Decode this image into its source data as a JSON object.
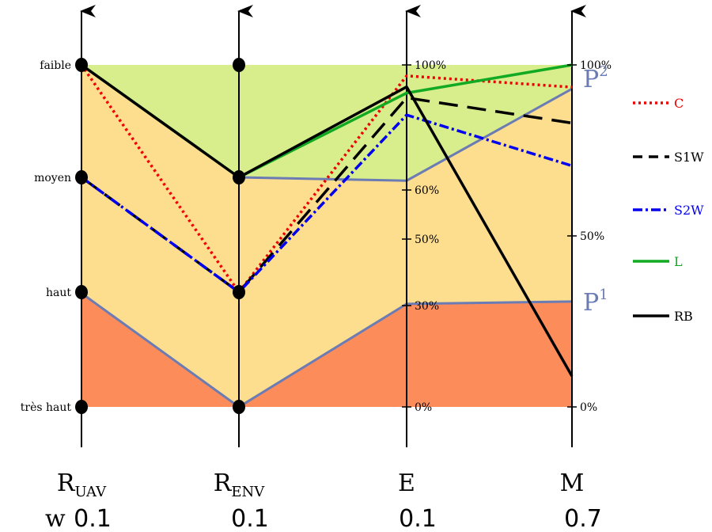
{
  "chart_data": {
    "type": "parallel_coordinates",
    "axes": [
      {
        "id": "R_UAV",
        "label_main": "R",
        "label_sub": "UAV",
        "weight": "0.1",
        "kind": "ordinal"
      },
      {
        "id": "R_ENV",
        "label_main": "R",
        "label_sub": "ENV",
        "weight": "0.1",
        "kind": "ordinal"
      },
      {
        "id": "E",
        "label_main": "E",
        "label_sub": "",
        "weight": "0.1",
        "kind": "percent"
      },
      {
        "id": "M",
        "label_main": "M",
        "label_sub": "",
        "weight": "0.7",
        "kind": "percent"
      }
    ],
    "weight_prefix": "w",
    "ordinal_levels": [
      "très haut",
      "haut",
      "moyen",
      "faible"
    ],
    "e_ticks": [
      {
        "label": "0%",
        "value": 0
      },
      {
        "label": "30%",
        "value": 30
      },
      {
        "label": "50%",
        "value": 50
      },
      {
        "label": "60%",
        "value": 60
      },
      {
        "label": "100%",
        "value": 100
      }
    ],
    "m_ticks": [
      {
        "label": "0%",
        "value": 0
      },
      {
        "label": "50%",
        "value": 50
      },
      {
        "label": "100%",
        "value": 100
      }
    ],
    "profiles": [
      {
        "name_main": "P",
        "name_sup": "1",
        "values": [
          0.99,
          0.0,
          30.5,
          30.8
        ]
      },
      {
        "name_main": "P",
        "name_sup": "2",
        "values": [
          3.0,
          2.0,
          63.0,
          93.0
        ]
      }
    ],
    "regions": [
      {
        "color": "#fd8c5b",
        "bottom": "axis_min",
        "top": "P1"
      },
      {
        "color": "#fddd8e",
        "bottom": "P1",
        "top": "P2"
      },
      {
        "color": "#d8ee8c",
        "bottom": "P2",
        "top": [
          3.0,
          3.0,
          100,
          100
        ]
      }
    ],
    "series": [
      {
        "name": "C",
        "color": "#ee0000",
        "dash": "3,4",
        "values": [
          3.0,
          1.0,
          96.5,
          93.5
        ]
      },
      {
        "name": "S1W",
        "color": "#000000",
        "dash": "24,12",
        "values": [
          2.0,
          1.0,
          89.5,
          83.0
        ]
      },
      {
        "name": "S2W",
        "color": "#0000ee",
        "dash": "12,4,3,4",
        "values": [
          2.0,
          1.0,
          84.0,
          70.5
        ]
      },
      {
        "name": "L",
        "color": "#11aa22",
        "dash": "",
        "values": [
          3.0,
          2.0,
          91.0,
          100.0
        ]
      },
      {
        "name": "RB",
        "color": "#000000",
        "dash": "",
        "values": [
          3.0,
          2.0,
          93.0,
          9.0
        ]
      }
    ],
    "legend_position": "right",
    "profile_color": "#6b7bb4"
  }
}
